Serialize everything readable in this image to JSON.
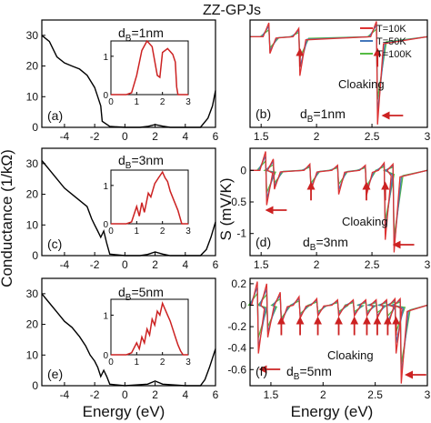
{
  "figure_title": "ZZ-GPJs",
  "left_ylabel": "Conductance (1/kΩ)",
  "right_ylabel": "S (mV/K)",
  "xlabel": "Energy (eV)",
  "colors": {
    "curve": "#000000",
    "inset": "#cc2222",
    "arrow": "#cc2222",
    "T10": "#dd3333",
    "T50": "#4477bb",
    "T100": "#55bb44"
  },
  "chart_data": [
    {
      "type": "line",
      "panel": "(a)",
      "label": "d_B=1nm",
      "label_main": "d",
      "label_sub": "B",
      "label_tail": "=1nm",
      "xlim": [
        -5.5,
        6
      ],
      "ylim": [
        0,
        35
      ],
      "xticks": [
        "-4",
        "-2",
        "0",
        "2",
        "4",
        "6"
      ],
      "yticks": [
        "0",
        "10",
        "20",
        "30"
      ],
      "x": [
        -5.5,
        -5.0,
        -4.5,
        -4.0,
        -3.5,
        -3.0,
        -2.5,
        -2.0,
        -1.8,
        -1.6,
        -1.5,
        -1.0,
        0.0,
        1.0,
        1.5,
        2.0,
        2.5,
        3.0,
        4.0,
        5.0,
        5.5,
        5.8,
        6.0
      ],
      "y": [
        30,
        28,
        23,
        21,
        20,
        19,
        17,
        13,
        10,
        7,
        2,
        0.3,
        0,
        0,
        0.3,
        0.9,
        0.4,
        0,
        0,
        0,
        3,
        7,
        12
      ],
      "inset": {
        "xlim": [
          0,
          3
        ],
        "ylim": [
          0,
          1.4
        ],
        "xticks": [
          "0",
          "1",
          "2",
          "3"
        ],
        "yticks": [
          "0",
          "1"
        ],
        "x": [
          0.0,
          0.6,
          0.8,
          1.0,
          1.2,
          1.4,
          1.6,
          1.8,
          1.9,
          2.0,
          2.2,
          2.4,
          2.5,
          2.55,
          2.6,
          2.7,
          3.0
        ],
        "y": [
          0,
          0,
          0.05,
          0.5,
          1.15,
          1.4,
          1.25,
          0.5,
          0.45,
          1.1,
          1.2,
          1.05,
          0.85,
          0.2,
          0,
          0,
          0
        ]
      }
    },
    {
      "type": "line",
      "panel": "(c)",
      "label": "d_B=3nm",
      "label_main": "d",
      "label_sub": "B",
      "label_tail": "=3nm",
      "xlim": [
        -5.5,
        6
      ],
      "ylim": [
        0,
        35
      ],
      "xticks": [
        "-4",
        "-2",
        "0",
        "2",
        "4",
        "6"
      ],
      "yticks": [
        "0",
        "10",
        "20",
        "30"
      ],
      "x": [
        -5.5,
        -5.0,
        -4.5,
        -4.0,
        -3.5,
        -3.0,
        -2.5,
        -2.2,
        -2.0,
        -1.8,
        -1.6,
        -1.4,
        -1.2,
        -1.0,
        0.0,
        1.0,
        1.5,
        2.0,
        2.5,
        3.0,
        4.0,
        5.0,
        5.4,
        5.7,
        6.0
      ],
      "y": [
        31,
        28,
        25,
        22,
        20,
        18,
        16,
        12,
        10,
        8,
        6,
        8,
        4,
        0.5,
        0,
        0,
        0.4,
        1.2,
        0.5,
        0,
        0,
        0,
        2,
        6,
        11
      ],
      "inset": {
        "xlim": [
          0,
          3
        ],
        "ylim": [
          0,
          1.4
        ],
        "xticks": [
          "0",
          "1",
          "2",
          "3"
        ],
        "yticks": [
          "0",
          "1"
        ],
        "x": [
          0.0,
          0.6,
          0.8,
          1.0,
          1.1,
          1.2,
          1.3,
          1.45,
          1.55,
          1.7,
          1.85,
          2.0,
          2.1,
          2.2,
          2.3,
          2.45,
          2.6,
          2.75,
          3.0
        ],
        "y": [
          0,
          0,
          0.05,
          0.45,
          0.2,
          0.55,
          0.3,
          0.8,
          0.7,
          1.05,
          1.2,
          1.35,
          1.2,
          1.1,
          0.85,
          0.6,
          0.35,
          0,
          0
        ]
      }
    },
    {
      "type": "line",
      "panel": "(e)",
      "label": "d_B=5nm",
      "label_main": "d",
      "label_sub": "B",
      "label_tail": "=5nm",
      "xlim": [
        -5.5,
        6
      ],
      "ylim": [
        0,
        35
      ],
      "xticks": [
        "-4",
        "-2",
        "0",
        "2",
        "4",
        "6"
      ],
      "yticks": [
        "0",
        "10",
        "20",
        "30"
      ],
      "x": [
        -5.5,
        -5.0,
        -4.5,
        -4.0,
        -3.5,
        -3.0,
        -2.6,
        -2.3,
        -2.0,
        -1.8,
        -1.6,
        -1.4,
        -1.2,
        -1.0,
        0.0,
        1.5,
        2.0,
        2.5,
        4.0,
        5.0,
        5.3,
        5.6,
        6.0
      ],
      "y": [
        30,
        27,
        24,
        21,
        19,
        16,
        13,
        10,
        8,
        6,
        3,
        5,
        3,
        0.5,
        0,
        0.5,
        1.5,
        0.5,
        0,
        0,
        2,
        6,
        12
      ],
      "inset": {
        "xlim": [
          0,
          3
        ],
        "ylim": [
          0,
          1.4
        ],
        "xticks": [
          "0",
          "1",
          "2",
          "3"
        ],
        "yticks": [
          "0",
          "1"
        ],
        "x": [
          0.0,
          0.6,
          0.8,
          1.0,
          1.1,
          1.2,
          1.3,
          1.4,
          1.5,
          1.6,
          1.7,
          1.8,
          1.9,
          2.0,
          2.1,
          2.2,
          2.3,
          2.4,
          2.5,
          2.6,
          2.7,
          2.8,
          3.0
        ],
        "y": [
          0,
          0,
          0.05,
          0.3,
          0.15,
          0.45,
          0.3,
          0.65,
          0.5,
          0.9,
          0.75,
          1.1,
          1.0,
          1.3,
          1.15,
          1.0,
          0.85,
          0.65,
          0.45,
          0.25,
          0.1,
          0,
          0
        ]
      }
    },
    {
      "type": "line",
      "panel": "(b)",
      "label": "d_B=1nm",
      "label_main": "d",
      "label_sub": "B",
      "label_tail": "=1nm",
      "annotation": "Cloaking",
      "legend": [
        "T=10K",
        "T=50K",
        "T=100K"
      ],
      "legend_position": "top-right",
      "xlim": [
        1.4,
        3.0
      ],
      "ylim": [
        -0.65,
        0.12
      ],
      "xticks": [
        "1.5",
        "2",
        "2.5",
        "3"
      ],
      "yticks": [],
      "baseline": 0,
      "resonances": [
        {
          "x": 1.58,
          "depth": [
            -0.12,
            -0.1,
            -0.08
          ],
          "up": 0.1
        },
        {
          "x": 1.85,
          "depth": [
            -0.28,
            -0.22,
            -0.15
          ],
          "up": 0.06
        },
        {
          "x": 2.55,
          "depth": [
            -0.63,
            -0.55,
            -0.45
          ],
          "up": 0.11
        }
      ],
      "up_arrows_x": [
        1.85,
        2.55
      ],
      "left_arrows_x": [
        2.65
      ]
    },
    {
      "type": "line",
      "panel": "(d)",
      "label": "d_B=3nm",
      "label_main": "d",
      "label_sub": "B",
      "label_tail": "=3nm",
      "annotation": "Cloaking",
      "xlim": [
        1.4,
        3.0
      ],
      "ylim": [
        -1.35,
        0.35
      ],
      "xticks": [
        "1.5",
        "2",
        "2.5",
        "3"
      ],
      "yticks": [
        "0",
        "-0.5",
        "-1"
      ],
      "baseline": 0,
      "resonances": [
        {
          "x": 1.55,
          "depth": [
            -0.55,
            -0.45,
            -0.35
          ],
          "up": 0.3
        },
        {
          "x": 1.62,
          "depth": [
            -0.3,
            -0.25,
            -0.2
          ],
          "up": 0.18
        },
        {
          "x": 1.95,
          "depth": [
            -0.32,
            -0.26,
            -0.2
          ],
          "up": 0.1
        },
        {
          "x": 2.2,
          "depth": [
            -0.38,
            -0.3,
            -0.22
          ],
          "up": 0.08
        },
        {
          "x": 2.45,
          "depth": [
            -0.4,
            -0.32,
            -0.25
          ],
          "up": 0.08
        },
        {
          "x": 2.62,
          "depth": [
            -1.1,
            -0.95,
            -0.8
          ],
          "up": 0.12
        },
        {
          "x": 2.7,
          "depth": [
            -1.3,
            -1.2,
            -1.05
          ],
          "up": 0.1
        }
      ],
      "up_arrows_x": [
        1.95,
        2.45,
        2.62
      ],
      "left_arrows_x": [
        1.6,
        2.75
      ]
    },
    {
      "type": "line",
      "panel": "(f)",
      "label": "d_B=5nm",
      "label_main": "d",
      "label_sub": "B",
      "label_tail": "=5nm",
      "annotation": "Cloaking",
      "xlim": [
        1.3,
        3.0
      ],
      "ylim": [
        -0.75,
        0.25
      ],
      "xticks": [
        "1.5",
        "2",
        "2.5",
        "3"
      ],
      "yticks": [
        "0.2",
        "0",
        "-0.2",
        "-0.4",
        "-0.6"
      ],
      "baseline": 0,
      "resonances": [
        {
          "x": 1.38,
          "depth": [
            -0.45,
            -0.4,
            -0.3
          ],
          "up": 0.22
        },
        {
          "x": 1.47,
          "depth": [
            -0.3,
            -0.25,
            -0.2
          ],
          "up": 0.2
        },
        {
          "x": 1.6,
          "depth": [
            -0.18,
            -0.15,
            -0.12
          ],
          "up": 0.12
        },
        {
          "x": 1.78,
          "depth": [
            -0.12,
            -0.1,
            -0.08
          ],
          "up": 0.08
        },
        {
          "x": 1.95,
          "depth": [
            -0.1,
            -0.08,
            -0.06
          ],
          "up": 0.06
        },
        {
          "x": 2.15,
          "depth": [
            -0.1,
            -0.08,
            -0.06
          ],
          "up": 0.05
        },
        {
          "x": 2.3,
          "depth": [
            -0.1,
            -0.08,
            -0.06
          ],
          "up": 0.05
        },
        {
          "x": 2.42,
          "depth": [
            -0.1,
            -0.08,
            -0.06
          ],
          "up": 0.05
        },
        {
          "x": 2.52,
          "depth": [
            -0.12,
            -0.1,
            -0.07
          ],
          "up": 0.05
        },
        {
          "x": 2.62,
          "depth": [
            -0.2,
            -0.15,
            -0.1
          ],
          "up": 0.05
        },
        {
          "x": 2.7,
          "depth": [
            -0.45,
            -0.35,
            -0.25
          ],
          "up": 0.06
        },
        {
          "x": 2.75,
          "depth": [
            -0.73,
            -0.65,
            -0.55
          ],
          "up": 0.06
        }
      ],
      "up_arrows_x": [
        1.6,
        1.78,
        1.95,
        2.15,
        2.3,
        2.42,
        2.52,
        2.62,
        2.7
      ],
      "left_arrows_x": [
        1.45,
        2.85
      ]
    }
  ]
}
